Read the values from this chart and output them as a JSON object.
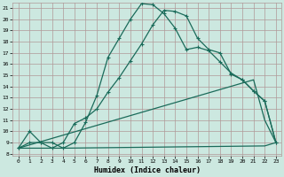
{
  "xlabel": "Humidex (Indice chaleur)",
  "bg_color": "#cce8e0",
  "grid_color": "#b09898",
  "line_color": "#1a6b5a",
  "xlim": [
    -0.5,
    23.5
  ],
  "ylim": [
    7.8,
    21.5
  ],
  "xticks": [
    0,
    1,
    2,
    3,
    4,
    5,
    6,
    7,
    8,
    9,
    10,
    11,
    12,
    13,
    14,
    15,
    16,
    17,
    18,
    19,
    20,
    21,
    22,
    23
  ],
  "yticks": [
    8,
    9,
    10,
    11,
    12,
    13,
    14,
    15,
    16,
    17,
    18,
    19,
    20,
    21
  ],
  "series1_x": [
    0,
    1,
    2,
    3,
    4,
    5,
    6,
    7,
    8,
    9,
    10,
    11,
    12,
    13,
    14,
    15,
    16,
    17,
    18,
    19,
    20,
    21,
    22,
    23
  ],
  "series1_y": [
    8.5,
    10.0,
    9.0,
    9.0,
    8.5,
    9.0,
    10.8,
    13.2,
    16.6,
    18.3,
    20.0,
    21.4,
    21.3,
    20.5,
    19.2,
    17.3,
    17.5,
    17.2,
    16.2,
    15.2,
    14.6,
    13.6,
    12.7,
    9.0
  ],
  "series2_x": [
    0,
    1,
    2,
    3,
    4,
    5,
    6,
    7,
    8,
    9,
    10,
    11,
    12,
    13,
    14,
    15,
    16,
    17,
    18,
    19,
    20,
    21,
    22,
    23
  ],
  "series2_y": [
    8.5,
    9.0,
    9.0,
    8.5,
    9.0,
    10.7,
    11.2,
    12.0,
    13.5,
    14.8,
    16.3,
    17.8,
    19.5,
    20.8,
    20.7,
    20.3,
    18.3,
    17.3,
    17.0,
    15.1,
    14.6,
    13.6,
    12.7,
    9.0
  ],
  "series3_x": [
    0,
    4,
    22,
    23
  ],
  "series3_y": [
    8.5,
    8.5,
    8.7,
    9.0
  ],
  "series4_x": [
    0,
    21,
    22,
    23
  ],
  "series4_y": [
    8.5,
    14.6,
    11.0,
    9.0
  ]
}
